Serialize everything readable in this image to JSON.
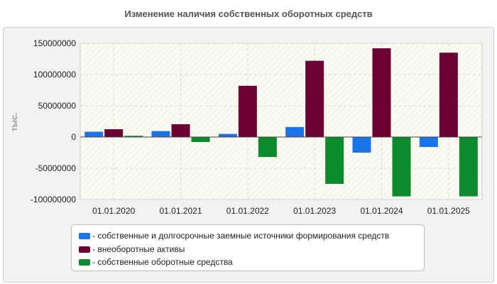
{
  "title": "Изменение наличия собственных оборотных средств",
  "chart_data": {
    "type": "bar",
    "title": "Изменение наличия собственных оборотных средств",
    "ylabel": "тыс.",
    "xlabel": "",
    "ylim": [
      -100000000,
      150000000
    ],
    "yticks": [
      150000000,
      100000000,
      50000000,
      0,
      -50000000,
      -100000000
    ],
    "ytick_labels": [
      "150000000",
      "100000000",
      "50000000",
      "0",
      "-50000000",
      "-100000000"
    ],
    "grid": true,
    "legend_position": "bottom",
    "categories": [
      "01.01.2020",
      "01.01.2021",
      "01.01.2022",
      "01.01.2023",
      "01.01.2024",
      "01.01.2025"
    ],
    "series": [
      {
        "name": "- собственные и долгосрочные заемные источники формирования средств",
        "color": "#1a73e8",
        "values": [
          8500000,
          9500000,
          5000000,
          16000000,
          -25000000,
          -16000000
        ]
      },
      {
        "name": "- внеоборотные активы",
        "color": "#6b0033",
        "values": [
          12500000,
          20500000,
          82000000,
          122000000,
          142000000,
          135000000
        ]
      },
      {
        "name": "- собственные оборотные средства",
        "color": "#0c8a2e",
        "values": [
          2000000,
          -8000000,
          -32000000,
          -75000000,
          -95000000,
          -95000000
        ]
      }
    ]
  }
}
